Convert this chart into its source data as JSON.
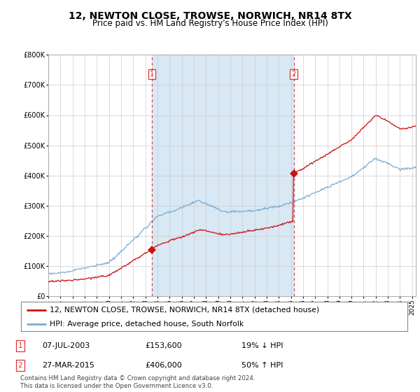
{
  "title": "12, NEWTON CLOSE, TROWSE, NORWICH, NR14 8TX",
  "subtitle": "Price paid vs. HM Land Registry's House Price Index (HPI)",
  "legend_line1": "12, NEWTON CLOSE, TROWSE, NORWICH, NR14 8TX (detached house)",
  "legend_line2": "HPI: Average price, detached house, South Norfolk",
  "sale1_date": "07-JUL-2003",
  "sale1_price": 153600,
  "sale1_note": "19% ↓ HPI",
  "sale1_x": 2003.52,
  "sale1_y": 153600,
  "sale2_date": "27-MAR-2015",
  "sale2_price": 406000,
  "sale2_note": "50% ↑ HPI",
  "sale2_x": 2015.23,
  "sale2_y": 406000,
  "copyright": "Contains HM Land Registry data © Crown copyright and database right 2024.\nThis data is licensed under the Open Government Licence v3.0.",
  "hpi_color": "#7aadd4",
  "price_color": "#cc1111",
  "vline_color": "#dd3333",
  "shade_color": "#d8e8f5",
  "background_color": "#ffffff",
  "ylim": [
    0,
    800000
  ],
  "xlim_start": 1995.0,
  "xlim_end": 2025.3
}
